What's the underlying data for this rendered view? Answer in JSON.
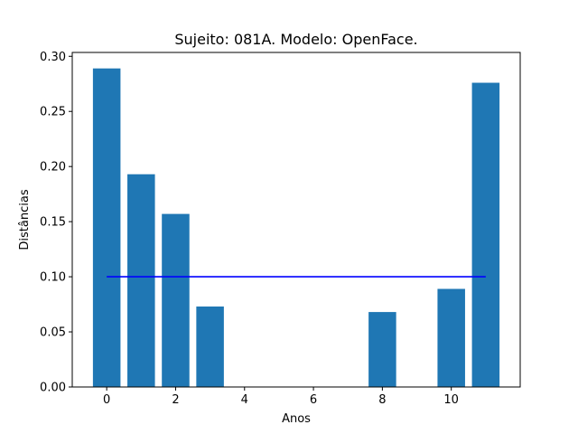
{
  "chart_data": {
    "type": "bar",
    "title": "Sujeito: 081A. Modelo: OpenFace.",
    "xlabel": "Anos",
    "ylabel": "Distâncias",
    "x": [
      0,
      1,
      2,
      3,
      4,
      5,
      6,
      7,
      8,
      9,
      10,
      11
    ],
    "values": [
      0.289,
      0.193,
      0.157,
      0.073,
      0,
      0,
      0,
      0,
      0.068,
      0,
      0.089,
      0.276
    ],
    "bar_color": "#1f77b4",
    "xlim": [
      -1.0,
      12.0
    ],
    "ylim": [
      0,
      0.3035
    ],
    "xticks": [
      0,
      2,
      4,
      6,
      8,
      10
    ],
    "xtick_labels": [
      "0",
      "2",
      "4",
      "6",
      "8",
      "10"
    ],
    "yticks": [
      0.0,
      0.05,
      0.1,
      0.15,
      0.2,
      0.25,
      0.3
    ],
    "ytick_labels": [
      "0.00",
      "0.05",
      "0.10",
      "0.15",
      "0.20",
      "0.25",
      "0.30"
    ],
    "threshold_line": {
      "value": 0.1,
      "x_start": 0,
      "x_end": 11,
      "color": "#0000ff"
    },
    "grid": false,
    "legend": "none"
  }
}
